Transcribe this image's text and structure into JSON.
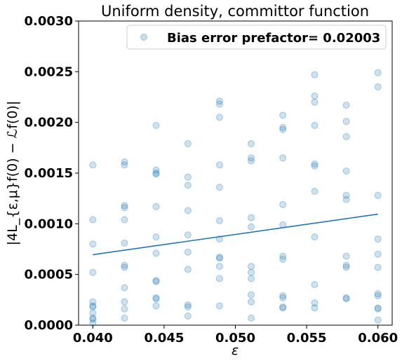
{
  "chart_data": {
    "type": "scatter",
    "title": "Uniform density, committor function",
    "xlabel": "ε",
    "ylabel": "|4L_{ε,μ}f(0) − ℒf(0)|",
    "xlim": [
      0.039,
      0.061
    ],
    "ylim": [
      0,
      0.003
    ],
    "x_ticks": [
      "0.040",
      "0.045",
      "0.050",
      "0.055",
      "0.060"
    ],
    "y_ticks": [
      "0.0000",
      "0.0005",
      "0.0010",
      "0.0015",
      "0.0020",
      "0.0025",
      "0.0030"
    ],
    "grid": false,
    "legend": {
      "entries": [
        "Bias error prefactor= 0.02003"
      ],
      "position": "upper right"
    },
    "colors": {
      "points": "#1f77b4",
      "line": "#1f77b4"
    },
    "series": [
      {
        "name": "Bias error prefactor= 0.02003",
        "kind": "scatter",
        "x": [
          0.04,
          0.04,
          0.04,
          0.04,
          0.04,
          0.04,
          0.04,
          0.04,
          0.04,
          0.04,
          0.04,
          0.04222,
          0.04222,
          0.04222,
          0.04222,
          0.04222,
          0.04222,
          0.04222,
          0.04222,
          0.04222,
          0.04222,
          0.04222,
          0.04222,
          0.04444,
          0.04444,
          0.04444,
          0.04444,
          0.04444,
          0.04444,
          0.04444,
          0.04444,
          0.04444,
          0.04444,
          0.04444,
          0.04444,
          0.04667,
          0.04667,
          0.04667,
          0.04667,
          0.04667,
          0.04667,
          0.04667,
          0.04667,
          0.04667,
          0.04667,
          0.04889,
          0.04889,
          0.04889,
          0.04889,
          0.04889,
          0.04889,
          0.04889,
          0.04889,
          0.04889,
          0.04889,
          0.04889,
          0.04889,
          0.05111,
          0.05111,
          0.05111,
          0.05111,
          0.05111,
          0.05111,
          0.05111,
          0.05111,
          0.05111,
          0.05111,
          0.05111,
          0.05333,
          0.05333,
          0.05333,
          0.05333,
          0.05333,
          0.05333,
          0.05333,
          0.05333,
          0.05333,
          0.05333,
          0.05333,
          0.05333,
          0.05556,
          0.05556,
          0.05556,
          0.05556,
          0.05556,
          0.05556,
          0.05556,
          0.05556,
          0.05556,
          0.05556,
          0.05556,
          0.05778,
          0.05778,
          0.05778,
          0.05778,
          0.05778,
          0.05778,
          0.05778,
          0.05778,
          0.05778,
          0.05778,
          0.05778,
          0.06,
          0.06,
          0.06,
          0.06,
          0.06,
          0.06,
          0.06,
          0.06,
          0.06,
          0.06,
          0.06
        ],
        "y": [
          0.00158,
          0.00104,
          0.0008,
          0.00052,
          0.00023,
          0.00019,
          0.00018,
          0.00012,
          7e-05,
          6e-05,
          2e-05,
          0.00161,
          0.00158,
          0.00118,
          0.00116,
          0.00104,
          0.00081,
          0.00059,
          0.00057,
          0.00037,
          0.00023,
          0.00016,
          7e-05,
          0.00197,
          0.00153,
          0.0015,
          0.00149,
          0.00117,
          0.00087,
          0.00071,
          0.00044,
          0.00043,
          0.00027,
          0.00026,
          0.00019,
          0.00179,
          0.00146,
          0.00138,
          0.00113,
          0.00089,
          0.00072,
          0.00055,
          0.0002,
          0.00018,
          9e-05,
          0.00221,
          0.00218,
          0.00205,
          0.00158,
          0.00136,
          0.00103,
          0.00085,
          0.00067,
          0.00066,
          0.00058,
          0.00046,
          0.00019,
          0.00179,
          0.00165,
          0.00162,
          0.00106,
          0.00097,
          0.00058,
          0.00052,
          0.00046,
          0.0003,
          0.00023,
          7e-05,
          0.00207,
          0.00195,
          0.00193,
          0.00165,
          0.00119,
          0.00099,
          0.00068,
          0.00065,
          0.00029,
          0.00027,
          0.00018,
          0.00017,
          0.00247,
          0.00226,
          0.0022,
          0.00197,
          0.00159,
          0.00157,
          0.00132,
          0.00087,
          0.0004,
          0.00022,
          0.00017,
          0.00217,
          0.00201,
          0.00186,
          0.00152,
          0.00128,
          0.00124,
          0.00068,
          0.00059,
          0.00057,
          0.00027,
          0.00026,
          0.00249,
          0.00235,
          0.00128,
          0.00085,
          0.0007,
          0.00057,
          0.00031,
          0.00029,
          0.00017,
          0.00016,
          5e-05
        ]
      },
      {
        "name": "",
        "kind": "line",
        "x": [
          0.04,
          0.06
        ],
        "y": [
          0.000695,
          0.001095
        ]
      }
    ]
  }
}
